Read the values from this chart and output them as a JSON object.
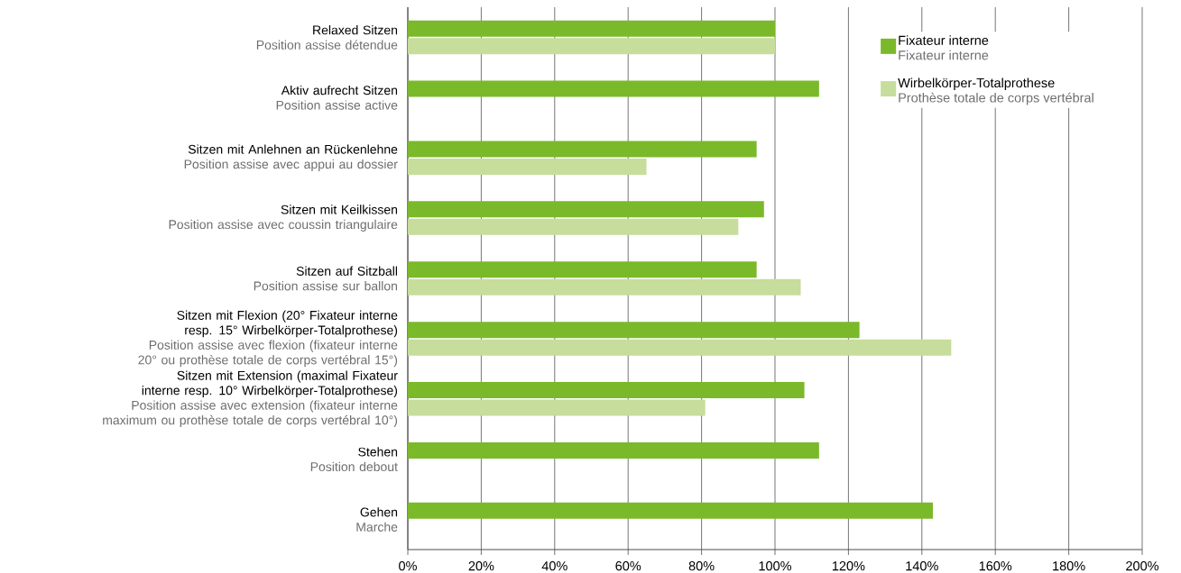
{
  "chart_data": {
    "type": "bar",
    "orientation": "horizontal",
    "categories": [
      "Relaxed Sitzen",
      "Aktiv aufrecht Sitzen",
      "Sitzen mit Anlehnen an Rückenlehne",
      "Sitzen mit Keilkissen",
      "Sitzen auf Sitzball",
      "Sitzen mit Flexion (20° Fixateur interne resp. 15° Wirbelkörper-Totalprothese)",
      "Sitzen mit Extension (maximal Fixateur interne resp. 10° Wirbelkörper-Totalprothese)",
      "Stehen",
      "Gehen"
    ],
    "annotations": [
      "Position assise détendue",
      "Position assise active",
      "Position assise avec appui au dossier",
      "Position assise avec coussin triangulaire",
      "Position assise sur ballon",
      "Position assise avec flexion (fixateur interne 20° ou prothèse totale de corps vertébral 15°)",
      "Position assise avec extension (fixateur interne maximum ou prothèse totale de corps vertébral 10°)",
      "Position debout",
      "Marche",
      "Fixateur interne",
      "Prothèse totale de corps vertébral"
    ],
    "series": [
      {
        "name": "Fixateur interne",
        "color": "#7ab929",
        "values": [
          100,
          112,
          95,
          97,
          95,
          123,
          108,
          112,
          143
        ]
      },
      {
        "name": "Wirbelkörper-Totalprothese",
        "color": "#c6dd9c",
        "values": [
          100,
          null,
          65,
          90,
          107,
          148,
          81,
          null,
          null
        ]
      }
    ],
    "xlim": [
      0,
      200
    ],
    "xticks": [
      {
        "value": 0,
        "label": "0%"
      },
      {
        "value": 20,
        "label": "20%"
      },
      {
        "value": 40,
        "label": "40%"
      },
      {
        "value": 60,
        "label": "60%"
      },
      {
        "value": 80,
        "label": "80%"
      },
      {
        "value": 100,
        "label": "100%"
      },
      {
        "value": 120,
        "label": "120%"
      },
      {
        "value": 140,
        "label": "140%"
      },
      {
        "value": 160,
        "label": "160%"
      },
      {
        "value": 180,
        "label": "180%"
      },
      {
        "value": 200,
        "label": "200%"
      }
    ],
    "grid": "x",
    "legend": "top right"
  }
}
